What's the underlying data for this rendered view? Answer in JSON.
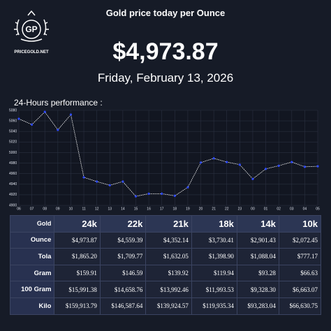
{
  "logo": {
    "initials": "GP",
    "site": "PRICEGOLD.NET"
  },
  "header": {
    "title": "Gold price today per Ounce",
    "price": "$4,973.87",
    "date": "Friday, February 13, 2026",
    "section": "24-Hours performance :"
  },
  "chart_data": {
    "type": "line",
    "categories": [
      "06",
      "07",
      "08",
      "09",
      "10",
      "11",
      "12",
      "13",
      "14",
      "15",
      "16",
      "17",
      "18",
      "19",
      "20",
      "21",
      "22",
      "23",
      "00",
      "01",
      "02",
      "03",
      "04",
      "05"
    ],
    "series": [
      {
        "name": "Gold",
        "color": "#2f4bff",
        "values": [
          5064,
          5053,
          5077,
          5043,
          5072,
          4953,
          4945,
          4938,
          4945,
          4917,
          4922,
          4922,
          4918,
          4934,
          4981,
          4989,
          4982,
          4977,
          4950,
          4969,
          4975,
          4982,
          4973,
          4974
        ]
      }
    ],
    "line_color": "#ffffff",
    "ylim": [
      4900,
      5080
    ],
    "yticks": [
      4900,
      4920,
      4940,
      4960,
      4980,
      5000,
      5020,
      5040,
      5060,
      5080
    ],
    "grid": true
  },
  "table": {
    "header": [
      "Gold",
      "24k",
      "22k",
      "21k",
      "18k",
      "14k",
      "10k"
    ],
    "rows": [
      [
        "Ounce",
        "$4,973.87",
        "$4,559.39",
        "$4,352.14",
        "$3,730.41",
        "$2,901.43",
        "$2,072.45"
      ],
      [
        "Tola",
        "$1,865.20",
        "$1,709.77",
        "$1,632.05",
        "$1,398.90",
        "$1,088.04",
        "$777.17"
      ],
      [
        "Gram",
        "$159.91",
        "$146.59",
        "$139.92",
        "$119.94",
        "$93.28",
        "$66.63"
      ],
      [
        "100 Gram",
        "$15,991.38",
        "$14,658.76",
        "$13,992.46",
        "$11,993.53",
        "$9,328.30",
        "$6,663.07"
      ],
      [
        "Kilo",
        "$159,913.79",
        "$146,587.64",
        "$139,924.57",
        "$119,935.34",
        "$93,283.04",
        "$66,630.75"
      ]
    ]
  }
}
